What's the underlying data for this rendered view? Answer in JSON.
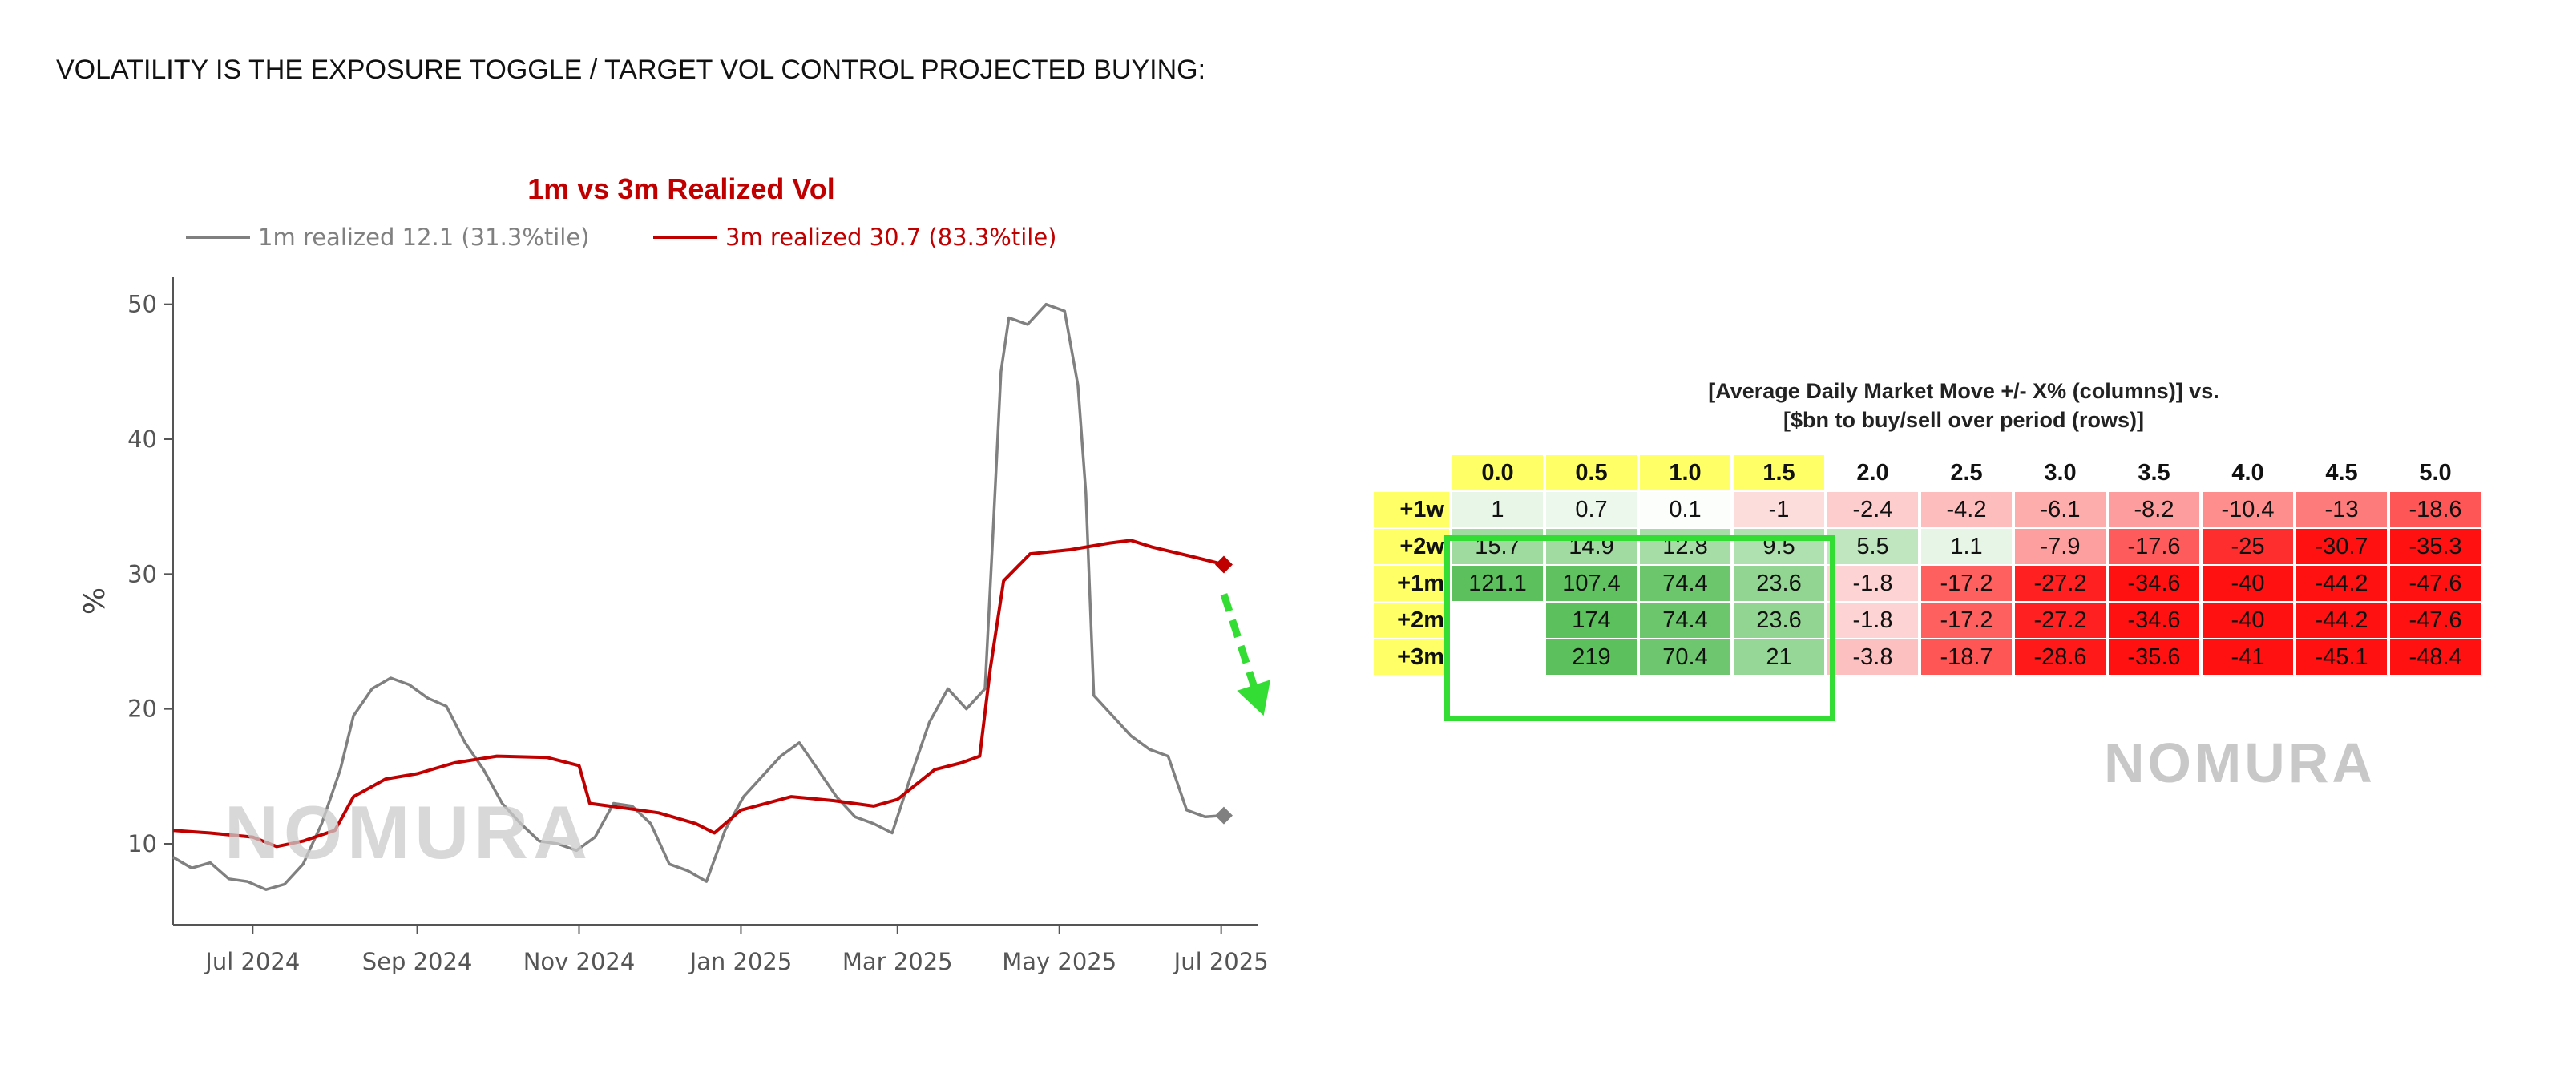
{
  "page": {
    "heading": "VOLATILITY IS THE EXPOSURE TOGGLE / TARGET VOL CONTROL PROJECTED BUYING:",
    "watermark": "NOMURA"
  },
  "colors": {
    "one_month": "#808080",
    "three_month": "#c00000",
    "arrow": "#33dd33",
    "highlight": "#ffff66"
  },
  "chart_data": [
    {
      "type": "line",
      "title": "1m vs 3m Realized Vol",
      "ylabel": "%",
      "xlabel": "",
      "ylim": [
        4,
        52
      ],
      "yticks": [
        10,
        20,
        30,
        40,
        50
      ],
      "xlim": [
        "2024-06-01",
        "2025-07-15"
      ],
      "xticks": [
        {
          "date": "2024-07-01",
          "label": "Jul 2024"
        },
        {
          "date": "2024-09-01",
          "label": "Sep 2024"
        },
        {
          "date": "2024-11-01",
          "label": "Nov 2024"
        },
        {
          "date": "2025-01-01",
          "label": "Jan 2025"
        },
        {
          "date": "2025-03-01",
          "label": "Mar 2025"
        },
        {
          "date": "2025-05-01",
          "label": "May 2025"
        },
        {
          "date": "2025-07-01",
          "label": "Jul 2025"
        }
      ],
      "grid": false,
      "legend_position": "top",
      "series": [
        {
          "name": "1m realized 12.1 (31.3%tile)",
          "color": "#808080",
          "end_marker": "diamond",
          "points": [
            [
              "2024-06-01",
              9.0
            ],
            [
              "2024-06-08",
              8.2
            ],
            [
              "2024-06-15",
              8.6
            ],
            [
              "2024-06-22",
              7.4
            ],
            [
              "2024-06-29",
              7.2
            ],
            [
              "2024-07-06",
              6.6
            ],
            [
              "2024-07-13",
              7.0
            ],
            [
              "2024-07-20",
              8.5
            ],
            [
              "2024-07-27",
              11.5
            ],
            [
              "2024-08-03",
              15.5
            ],
            [
              "2024-08-08",
              19.5
            ],
            [
              "2024-08-15",
              21.5
            ],
            [
              "2024-08-22",
              22.3
            ],
            [
              "2024-08-29",
              21.8
            ],
            [
              "2024-09-05",
              20.8
            ],
            [
              "2024-09-12",
              20.2
            ],
            [
              "2024-09-19",
              17.5
            ],
            [
              "2024-09-26",
              15.5
            ],
            [
              "2024-10-03",
              13.0
            ],
            [
              "2024-10-10",
              11.5
            ],
            [
              "2024-10-17",
              10.2
            ],
            [
              "2024-10-24",
              10.0
            ],
            [
              "2024-10-31",
              9.5
            ],
            [
              "2024-11-07",
              10.5
            ],
            [
              "2024-11-14",
              13.0
            ],
            [
              "2024-11-21",
              12.8
            ],
            [
              "2024-11-28",
              11.5
            ],
            [
              "2024-12-05",
              8.5
            ],
            [
              "2024-12-12",
              8.0
            ],
            [
              "2024-12-19",
              7.2
            ],
            [
              "2024-12-26",
              11.0
            ],
            [
              "2025-01-02",
              13.5
            ],
            [
              "2025-01-09",
              15.0
            ],
            [
              "2025-01-16",
              16.5
            ],
            [
              "2025-01-23",
              17.5
            ],
            [
              "2025-01-30",
              15.5
            ],
            [
              "2025-02-06",
              13.5
            ],
            [
              "2025-02-13",
              12.0
            ],
            [
              "2025-02-20",
              11.5
            ],
            [
              "2025-02-27",
              10.8
            ],
            [
              "2025-03-06",
              15.0
            ],
            [
              "2025-03-13",
              19.0
            ],
            [
              "2025-03-20",
              21.5
            ],
            [
              "2025-03-27",
              20.0
            ],
            [
              "2025-04-03",
              21.5
            ],
            [
              "2025-04-06",
              33.0
            ],
            [
              "2025-04-09",
              45.0
            ],
            [
              "2025-04-12",
              49.0
            ],
            [
              "2025-04-19",
              48.5
            ],
            [
              "2025-04-26",
              50.0
            ],
            [
              "2025-05-03",
              49.5
            ],
            [
              "2025-05-08",
              44.0
            ],
            [
              "2025-05-11",
              36.0
            ],
            [
              "2025-05-14",
              21.0
            ],
            [
              "2025-05-21",
              19.5
            ],
            [
              "2025-05-28",
              18.0
            ],
            [
              "2025-06-04",
              17.0
            ],
            [
              "2025-06-11",
              16.5
            ],
            [
              "2025-06-18",
              12.5
            ],
            [
              "2025-06-25",
              12.0
            ],
            [
              "2025-07-02",
              12.1
            ]
          ]
        },
        {
          "name": "3m realized 30.7 (83.3%tile)",
          "color": "#c00000",
          "end_marker": "diamond",
          "points": [
            [
              "2024-06-01",
              11.0
            ],
            [
              "2024-06-15",
              10.8
            ],
            [
              "2024-07-01",
              10.5
            ],
            [
              "2024-07-10",
              9.8
            ],
            [
              "2024-07-20",
              10.2
            ],
            [
              "2024-08-01",
              11.0
            ],
            [
              "2024-08-08",
              13.5
            ],
            [
              "2024-08-20",
              14.8
            ],
            [
              "2024-09-01",
              15.2
            ],
            [
              "2024-09-15",
              16.0
            ],
            [
              "2024-10-01",
              16.5
            ],
            [
              "2024-10-20",
              16.4
            ],
            [
              "2024-11-01",
              15.8
            ],
            [
              "2024-11-05",
              13.0
            ],
            [
              "2024-11-20",
              12.6
            ],
            [
              "2024-12-01",
              12.3
            ],
            [
              "2024-12-15",
              11.5
            ],
            [
              "2024-12-22",
              10.8
            ],
            [
              "2025-01-01",
              12.5
            ],
            [
              "2025-01-20",
              13.5
            ],
            [
              "2025-02-05",
              13.2
            ],
            [
              "2025-02-20",
              12.8
            ],
            [
              "2025-03-01",
              13.3
            ],
            [
              "2025-03-15",
              15.5
            ],
            [
              "2025-03-25",
              16.0
            ],
            [
              "2025-04-01",
              16.5
            ],
            [
              "2025-04-05",
              23.0
            ],
            [
              "2025-04-10",
              29.5
            ],
            [
              "2025-04-20",
              31.5
            ],
            [
              "2025-05-05",
              31.8
            ],
            [
              "2025-05-20",
              32.3
            ],
            [
              "2025-05-28",
              32.5
            ],
            [
              "2025-06-05",
              32.0
            ],
            [
              "2025-06-20",
              31.3
            ],
            [
              "2025-07-02",
              30.7
            ]
          ]
        }
      ],
      "projection_arrow": {
        "from": [
          "2025-07-02",
          28.5
        ],
        "to": [
          "2025-07-17",
          19.5
        ]
      }
    },
    {
      "type": "table",
      "title_lines": [
        "[Average Daily Market Move +/- X% (columns)] vs.",
        "[$bn to buy/sell over period (rows)]"
      ],
      "columns": [
        "0.0",
        "0.5",
        "1.0",
        "1.5",
        "2.0",
        "2.5",
        "3.0",
        "3.5",
        "4.0",
        "4.5",
        "5.0"
      ],
      "highlighted_columns": 4,
      "rows": [
        {
          "label": "+1w",
          "values": [
            "1",
            "0.7",
            "0.1",
            "-1",
            "-2.4",
            "-4.2",
            "-6.1",
            "-8.2",
            "-10.4",
            "-13",
            "-18.6"
          ]
        },
        {
          "label": "+2w",
          "values": [
            "15.7",
            "14.9",
            "12.8",
            "9.5",
            "5.5",
            "1.1",
            "-7.9",
            "-17.6",
            "-25",
            "-30.7",
            "-35.3"
          ]
        },
        {
          "label": "+1m",
          "values": [
            "121.1",
            "107.4",
            "74.4",
            "23.6",
            "-1.8",
            "-17.2",
            "-27.2",
            "-34.6",
            "-40",
            "-44.2",
            "-47.6"
          ]
        },
        {
          "label": "+2m",
          "values": [
            "",
            "174",
            "74.4",
            "23.6",
            "-1.8",
            "-17.2",
            "-27.2",
            "-34.6",
            "-40",
            "-44.2",
            "-47.6"
          ]
        },
        {
          "label": "+3m",
          "values": [
            "",
            "219",
            "70.4",
            "21",
            "-3.8",
            "-18.7",
            "-28.6",
            "-35.6",
            "-41",
            "-45.1",
            "-48.4"
          ]
        }
      ]
    }
  ]
}
